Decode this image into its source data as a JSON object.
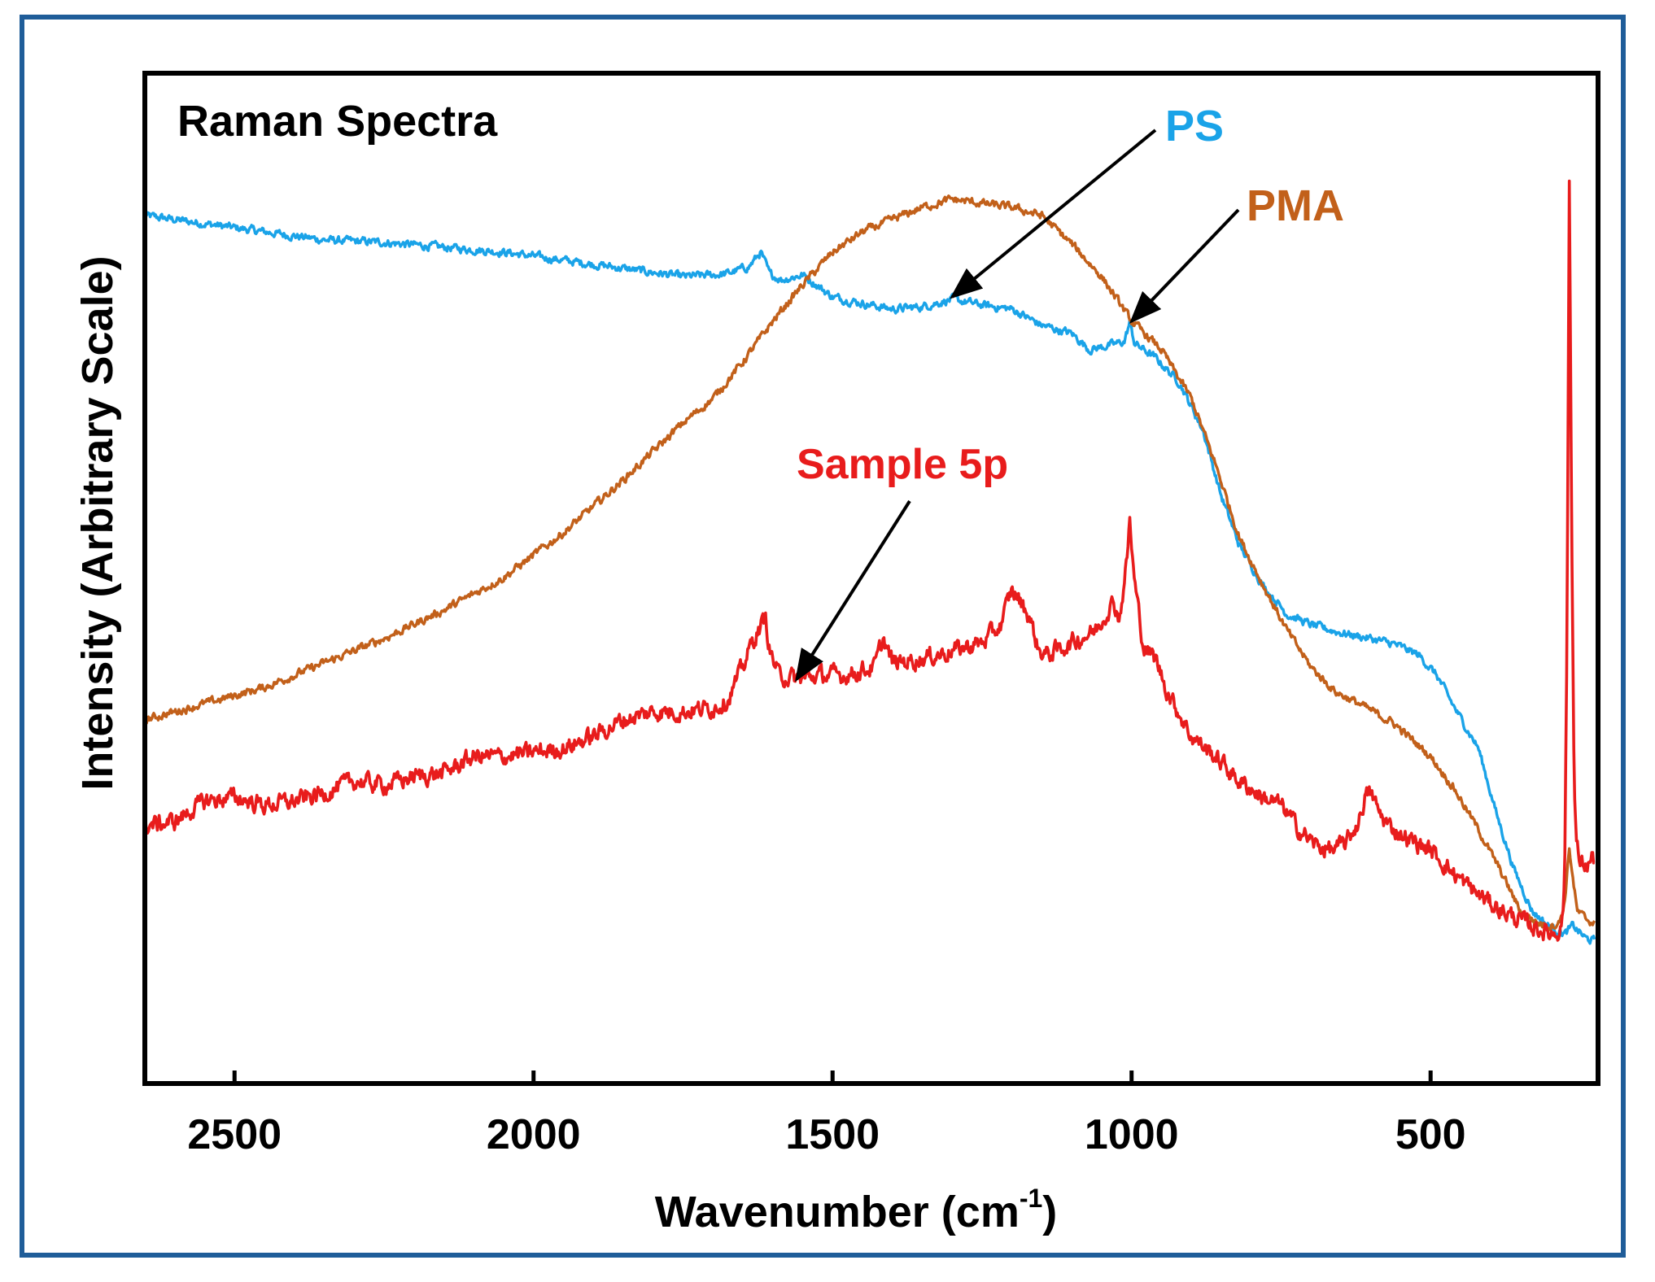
{
  "chart_data": {
    "type": "line",
    "title": "Raman Spectra",
    "xlabel_main": "Wavenumber (cm",
    "xlabel_sup": "-1",
    "xlabel_close": ")",
    "ylabel": "Intensity (Arbitrary Scale)",
    "xlim": [
      2650,
      220
    ],
    "ylim": [
      0,
      100
    ],
    "x_reversed": true,
    "y_ticks_shown": false,
    "x_ticks": [
      2500,
      2000,
      1500,
      1000,
      500
    ],
    "x_tick_labels": [
      "2500",
      "2000",
      "1500",
      "1000",
      "500"
    ],
    "series": [
      {
        "name": "PS",
        "color": "#1aa3e8",
        "noise": 0.5,
        "points": [
          [
            2650,
            97.5
          ],
          [
            2550,
            96.5
          ],
          [
            2450,
            95.5
          ],
          [
            2350,
            94.5
          ],
          [
            2250,
            94.2
          ],
          [
            2150,
            93.6
          ],
          [
            2050,
            93.0
          ],
          [
            1950,
            92.0
          ],
          [
            1850,
            91.0
          ],
          [
            1750,
            90.0
          ],
          [
            1680,
            90.3
          ],
          [
            1640,
            91.2
          ],
          [
            1620,
            93.0
          ],
          [
            1605,
            90.3
          ],
          [
            1585,
            89.6
          ],
          [
            1550,
            90.2
          ],
          [
            1500,
            87.5
          ],
          [
            1450,
            86.7
          ],
          [
            1400,
            86.0
          ],
          [
            1350,
            86.3
          ],
          [
            1300,
            87.2
          ],
          [
            1250,
            86.5
          ],
          [
            1200,
            86.0
          ],
          [
            1150,
            84.0
          ],
          [
            1100,
            83.0
          ],
          [
            1070,
            81.0
          ],
          [
            1040,
            81.5
          ],
          [
            1012,
            82.0
          ],
          [
            1003,
            84.4
          ],
          [
            995,
            81.8
          ],
          [
            960,
            80.0
          ],
          [
            920,
            77.0
          ],
          [
            880,
            71.0
          ],
          [
            850,
            63.0
          ],
          [
            820,
            57.0
          ],
          [
            780,
            52.0
          ],
          [
            740,
            48.5
          ],
          [
            700,
            47.2
          ],
          [
            650,
            46.2
          ],
          [
            600,
            45.5
          ],
          [
            560,
            44.8
          ],
          [
            520,
            43.5
          ],
          [
            490,
            41.0
          ],
          [
            460,
            37.0
          ],
          [
            420,
            32.0
          ],
          [
            390,
            24.0
          ],
          [
            360,
            17.0
          ],
          [
            330,
            12.0
          ],
          [
            300,
            10.0
          ],
          [
            275,
            9.2
          ],
          [
            262,
            10.2
          ],
          [
            240,
            8.6
          ],
          [
            225,
            8.3
          ]
        ]
      },
      {
        "name": "PMA",
        "color": "#c2601a",
        "noise": 0.5,
        "points": [
          [
            2650,
            35.5
          ],
          [
            2550,
            37.5
          ],
          [
            2450,
            39.5
          ],
          [
            2350,
            42.5
          ],
          [
            2250,
            45.5
          ],
          [
            2150,
            49.0
          ],
          [
            2050,
            53.0
          ],
          [
            1950,
            58.5
          ],
          [
            1850,
            65.0
          ],
          [
            1750,
            72.0
          ],
          [
            1700,
            75.0
          ],
          [
            1650,
            79.5
          ],
          [
            1600,
            84.5
          ],
          [
            1550,
            89.0
          ],
          [
            1500,
            93.0
          ],
          [
            1450,
            95.5
          ],
          [
            1400,
            97.0
          ],
          [
            1350,
            98.5
          ],
          [
            1300,
            99.5
          ],
          [
            1250,
            99.0
          ],
          [
            1200,
            98.5
          ],
          [
            1150,
            97.5
          ],
          [
            1100,
            94.0
          ],
          [
            1050,
            90.0
          ],
          [
            1000,
            84.5
          ],
          [
            950,
            81.0
          ],
          [
            900,
            75.0
          ],
          [
            860,
            67.0
          ],
          [
            820,
            58.0
          ],
          [
            780,
            52.0
          ],
          [
            740,
            46.5
          ],
          [
            700,
            42.0
          ],
          [
            660,
            39.0
          ],
          [
            620,
            37.5
          ],
          [
            560,
            35.0
          ],
          [
            500,
            31.0
          ],
          [
            460,
            27.0
          ],
          [
            420,
            22.0
          ],
          [
            380,
            16.5
          ],
          [
            350,
            12.0
          ],
          [
            320,
            10.5
          ],
          [
            300,
            10.2
          ],
          [
            285,
            10.5
          ],
          [
            276,
            13.0
          ],
          [
            268,
            19.8
          ],
          [
            262,
            16.0
          ],
          [
            255,
            12.0
          ],
          [
            240,
            11.0
          ],
          [
            225,
            10.5
          ]
        ]
      },
      {
        "name": "Sample 5p",
        "color": "#e81c1c",
        "noise": 1.1,
        "points": [
          [
            2650,
            22.5
          ],
          [
            2600,
            23.0
          ],
          [
            2550,
            25.5
          ],
          [
            2500,
            26.0
          ],
          [
            2450,
            25.0
          ],
          [
            2400,
            25.5
          ],
          [
            2350,
            26.5
          ],
          [
            2300,
            28.0
          ],
          [
            2250,
            27.5
          ],
          [
            2200,
            28.5
          ],
          [
            2150,
            29.0
          ],
          [
            2100,
            31.0
          ],
          [
            2050,
            31.0
          ],
          [
            2000,
            31.5
          ],
          [
            1950,
            32.0
          ],
          [
            1900,
            33.5
          ],
          [
            1850,
            35.5
          ],
          [
            1800,
            36.5
          ],
          [
            1750,
            36.5
          ],
          [
            1700,
            37.0
          ],
          [
            1675,
            38.0
          ],
          [
            1650,
            42.0
          ],
          [
            1635,
            45.0
          ],
          [
            1620,
            47.0
          ],
          [
            1612,
            48.0
          ],
          [
            1605,
            44.0
          ],
          [
            1590,
            41.0
          ],
          [
            1560,
            40.5
          ],
          [
            1520,
            41.0
          ],
          [
            1480,
            41.0
          ],
          [
            1430,
            42.0
          ],
          [
            1415,
            45.5
          ],
          [
            1400,
            42.5
          ],
          [
            1350,
            43.0
          ],
          [
            1300,
            44.0
          ],
          [
            1250,
            45.0
          ],
          [
            1220,
            47.0
          ],
          [
            1200,
            51.5
          ],
          [
            1185,
            50.0
          ],
          [
            1170,
            48.0
          ],
          [
            1155,
            44.0
          ],
          [
            1140,
            43.5
          ],
          [
            1100,
            45.0
          ],
          [
            1060,
            46.5
          ],
          [
            1040,
            49.0
          ],
          [
            1030,
            50.0
          ],
          [
            1020,
            48.0
          ],
          [
            1008,
            55.0
          ],
          [
            1003,
            60.0
          ],
          [
            996,
            53.0
          ],
          [
            980,
            44.5
          ],
          [
            960,
            43.0
          ],
          [
            940,
            39.0
          ],
          [
            900,
            33.5
          ],
          [
            860,
            31.0
          ],
          [
            820,
            28.0
          ],
          [
            780,
            26.0
          ],
          [
            750,
            25.0
          ],
          [
            720,
            22.0
          ],
          [
            690,
            20.0
          ],
          [
            660,
            19.5
          ],
          [
            640,
            20.5
          ],
          [
            620,
            23.0
          ],
          [
            610,
            26.0
          ],
          [
            600,
            26.5
          ],
          [
            585,
            24.0
          ],
          [
            570,
            22.5
          ],
          [
            540,
            21.0
          ],
          [
            500,
            19.5
          ],
          [
            460,
            16.5
          ],
          [
            420,
            14.0
          ],
          [
            380,
            12.0
          ],
          [
            340,
            10.5
          ],
          [
            300,
            9.2
          ],
          [
            282,
            9.8
          ],
          [
            276,
            15.0
          ],
          [
            272,
            45.0
          ],
          [
            268,
            102.0
          ],
          [
            264,
            60.0
          ],
          [
            260,
            28.0
          ],
          [
            256,
            20.0
          ],
          [
            250,
            18.0
          ],
          [
            240,
            17.5
          ],
          [
            230,
            18.5
          ],
          [
            225,
            18.0
          ]
        ]
      }
    ],
    "annotations": [
      {
        "text": "PS",
        "series": "PS"
      },
      {
        "text": "PMA",
        "series": "PMA"
      },
      {
        "text": "Sample 5p",
        "series": "Sample 5p"
      }
    ]
  }
}
